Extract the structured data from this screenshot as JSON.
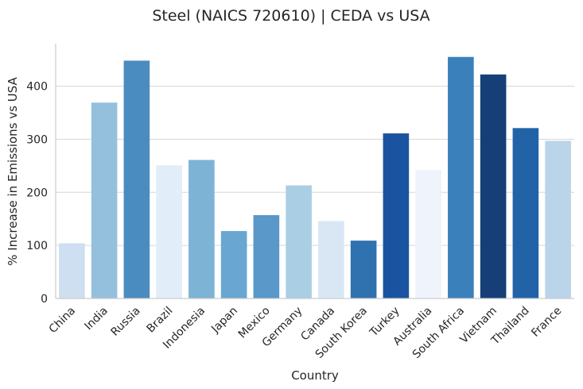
{
  "chart_data": {
    "type": "bar",
    "title": "Steel (NAICS 720610) | CEDA vs USA",
    "xlabel": "Country",
    "ylabel": "% Increase in Emissions vs USA",
    "ylim": [
      0,
      480
    ],
    "yticks": [
      0,
      100,
      200,
      300,
      400
    ],
    "grid": "horizontal",
    "categories": [
      "China",
      "India",
      "Russia",
      "Brazil",
      "Indonesia",
      "Japan",
      "Mexico",
      "Germany",
      "Canada",
      "South Korea",
      "Turkey",
      "Australia",
      "South Africa",
      "Vietnam",
      "Thailand",
      "France"
    ],
    "values": [
      104,
      369,
      448,
      251,
      261,
      127,
      157,
      213,
      146,
      109,
      311,
      242,
      455,
      422,
      321,
      297
    ],
    "colors": [
      "#cddff0",
      "#95c0dd",
      "#4a8cc0",
      "#e1edf8",
      "#7db3d5",
      "#69a6d1",
      "#5998c8",
      "#aaceе4",
      "#d9e7f5",
      "#3071b0",
      "#1a54a0",
      "#eff3fb",
      "#3a80bb",
      "#163f77",
      "#2263a8",
      "#bad5ea"
    ]
  }
}
